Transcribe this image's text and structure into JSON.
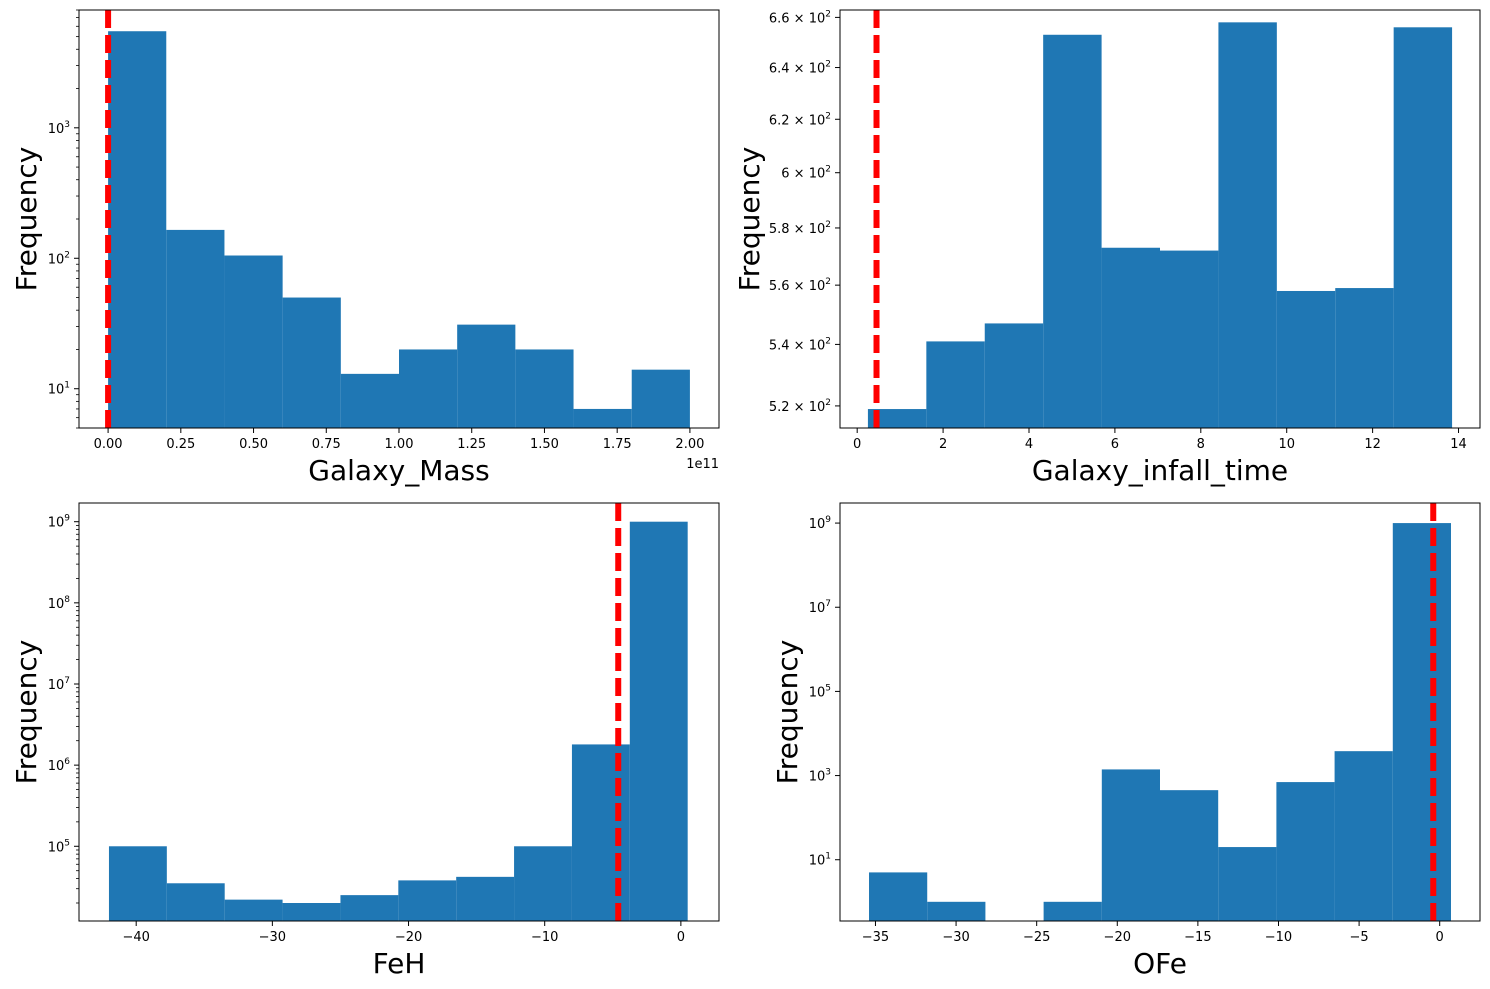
{
  "chart_data": [
    {
      "type": "bar",
      "xlabel": "Galaxy_Mass",
      "ylabel": "Frequency",
      "x_offset_label": "1e11",
      "x_scale_display": 100000000000.0,
      "xlim": [
        -10000000000.0,
        210000000000.0
      ],
      "xticks": [
        0,
        25000000000.0,
        50000000000.0,
        75000000000.0,
        100000000000.0,
        125000000000.0,
        150000000000.0,
        175000000000.0,
        200000000000.0
      ],
      "xtick_labels": [
        "0.00",
        "0.25",
        "0.50",
        "0.75",
        "1.00",
        "1.25",
        "1.50",
        "1.75",
        "2.00"
      ],
      "yscale": "log",
      "ylim": [
        5,
        8000
      ],
      "yticks": [
        10,
        100,
        1000
      ],
      "ytick_labels": [
        "10^1",
        "10^2",
        "10^3"
      ],
      "bin_edges": [
        0,
        20000000000.0,
        40000000000.0,
        60000000000.0,
        80000000000.0,
        100000000000.0,
        120000000000.0,
        140000000000.0,
        160000000000.0,
        180000000000.0,
        200000000000.0
      ],
      "values": [
        5500,
        165,
        105,
        50,
        13,
        20,
        31,
        20,
        7,
        14
      ],
      "vline": 0,
      "bar_color": "#1f77b4",
      "vline_color": "#ff0000"
    },
    {
      "type": "bar",
      "xlabel": "Galaxy_infall_time",
      "ylabel": "Frequency",
      "xlim": [
        -0.4,
        14.5
      ],
      "xticks": [
        0,
        2,
        4,
        6,
        8,
        10,
        12,
        14
      ],
      "xtick_labels": [
        "0",
        "2",
        "4",
        "6",
        "8",
        "10",
        "12",
        "14"
      ],
      "yscale": "log",
      "ylim": [
        513,
        663
      ],
      "yticks": [
        520,
        540,
        560,
        580,
        600,
        620,
        640,
        660
      ],
      "ytick_labels": [
        "5.2 × 10^2",
        "5.4 × 10^2",
        "5.6 × 10^2",
        "5.8 × 10^2",
        "6 × 10^2",
        "6.2 × 10^2",
        "6.4 × 10^2",
        "6.6 × 10^2"
      ],
      "bin_edges": [
        0.25,
        1.61,
        2.97,
        4.33,
        5.69,
        7.05,
        8.41,
        9.77,
        11.13,
        12.49,
        13.85
      ],
      "values": [
        519,
        541,
        547,
        653,
        573,
        572,
        658,
        558,
        559,
        656
      ],
      "vline": 0.45,
      "bar_color": "#1f77b4",
      "vline_color": "#ff0000"
    },
    {
      "type": "bar",
      "xlabel": "FeH",
      "ylabel": "Frequency",
      "xlim": [
        -44.2,
        2.8
      ],
      "xticks": [
        -40,
        -30,
        -20,
        -10,
        0
      ],
      "xtick_labels": [
        "−40",
        "−30",
        "−20",
        "−10",
        "0"
      ],
      "yscale": "log",
      "ylim": [
        12000,
        1700000000.0
      ],
      "yticks": [
        100000.0,
        1000000.0,
        10000000.0,
        100000000.0,
        1000000000.0
      ],
      "ytick_labels": [
        "10^5",
        "10^6",
        "10^7",
        "10^8",
        "10^9"
      ],
      "bin_edges": [
        -42.0,
        -37.75,
        -33.5,
        -29.25,
        -25.0,
        -20.75,
        -16.5,
        -12.25,
        -8.0,
        -3.75,
        0.5
      ],
      "values": [
        100000,
        35000,
        22000,
        20000,
        25000,
        38000,
        42000,
        100000,
        1800000,
        1000000000
      ],
      "vline": -4.6,
      "bar_color": "#1f77b4",
      "vline_color": "#ff0000"
    },
    {
      "type": "bar",
      "xlabel": "OFe",
      "ylabel": "Frequency",
      "xlim": [
        -37.2,
        2.5
      ],
      "xticks": [
        -35,
        -30,
        -25,
        -20,
        -15,
        -10,
        -5,
        0
      ],
      "xtick_labels": [
        "−35",
        "−30",
        "−25",
        "−20",
        "−15",
        "−10",
        "−5",
        "0"
      ],
      "yscale": "log",
      "ylim": [
        0.35,
        3000000000.0
      ],
      "yticks": [
        10,
        1000,
        100000,
        10000000,
        1000000000
      ],
      "ytick_labels": [
        "10^1",
        "10^3",
        "10^5",
        "10^7",
        "10^9"
      ],
      "bin_edges": [
        -35.4,
        -31.79,
        -28.18,
        -24.57,
        -20.96,
        -17.35,
        -13.74,
        -10.13,
        -6.52,
        -2.91,
        0.7
      ],
      "values": [
        5,
        1,
        0,
        1,
        1400,
        450,
        20,
        700,
        3800,
        1000000000
      ],
      "vline": -0.4,
      "bar_color": "#1f77b4",
      "vline_color": "#ff0000"
    }
  ]
}
